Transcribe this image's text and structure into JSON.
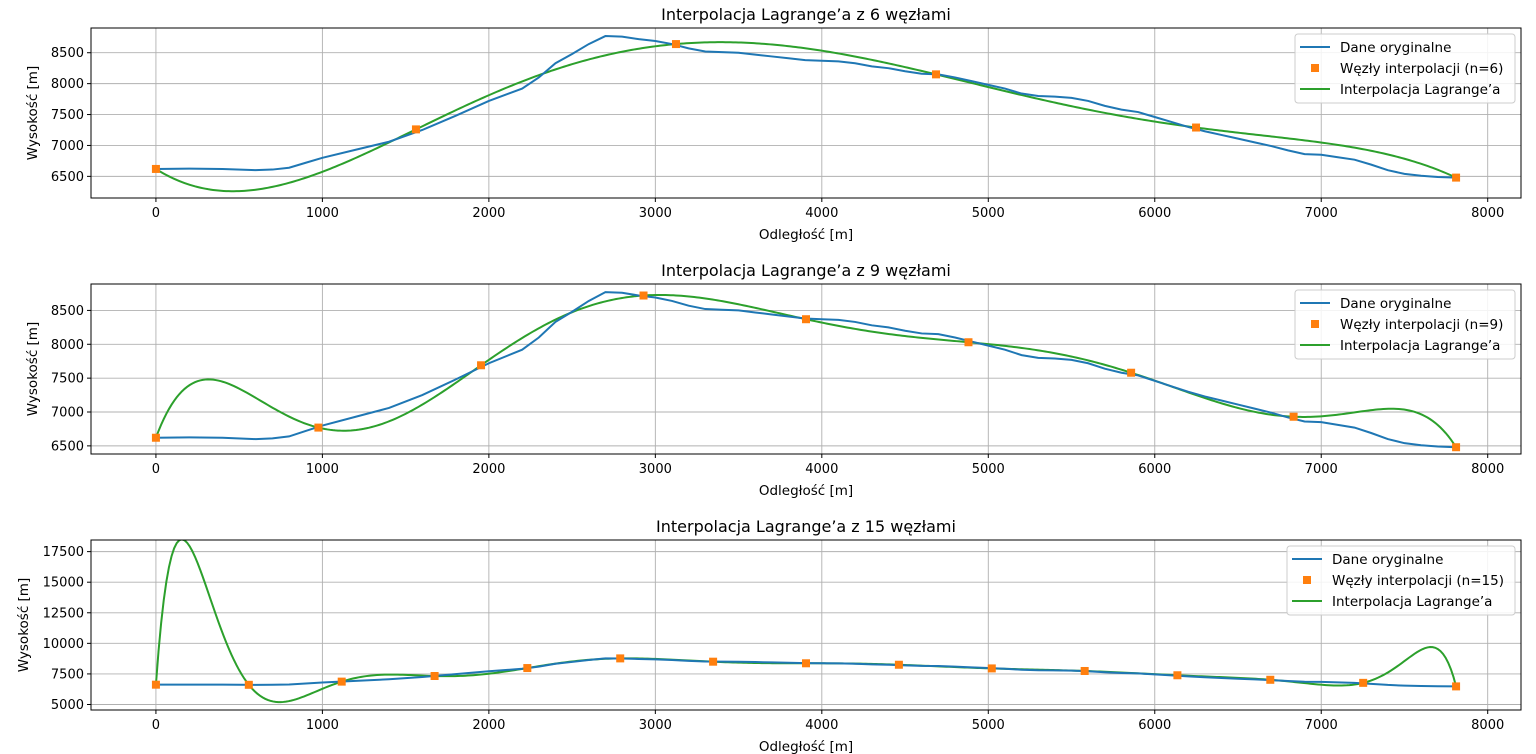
{
  "colors": {
    "original": "#1f77b4",
    "nodes": "#ff7f0e",
    "interpolation": "#2ca02c",
    "grid": "#b0b0b0"
  },
  "chart_data": [
    {
      "type": "line",
      "title": "Interpolacja Lagrange’a z 6 węzłami",
      "xlabel": "Odległość [m]",
      "ylabel": "Wysokość [m]",
      "xlim": [
        -390,
        8200
      ],
      "ylim": [
        6150,
        8900
      ],
      "xticks": [
        0,
        1000,
        2000,
        3000,
        4000,
        5000,
        6000,
        7000,
        8000
      ],
      "yticks": [
        6500,
        7000,
        7500,
        8000,
        8500
      ],
      "grid": true,
      "legend_position": "top-right",
      "series": [
        {
          "name": "Dane oryginalne",
          "kind": "line",
          "x": [
            0,
            200,
            400,
            600,
            700,
            800,
            900,
            1000,
            1200,
            1400,
            1600,
            1800,
            2000,
            2200,
            2300,
            2400,
            2500,
            2600,
            2700,
            2800,
            2900,
            3000,
            3100,
            3200,
            3300,
            3400,
            3500,
            3600,
            3700,
            3800,
            3900,
            4000,
            4100,
            4200,
            4300,
            4400,
            4500,
            4600,
            4700,
            4800,
            4900,
            5000,
            5100,
            5200,
            5300,
            5400,
            5500,
            5600,
            5700,
            5800,
            5900,
            6000,
            6100,
            6200,
            6300,
            6400,
            6500,
            6600,
            6700,
            6800,
            6900,
            7000,
            7100,
            7200,
            7300,
            7400,
            7500,
            7600,
            7700,
            7810
          ],
          "y": [
            6620,
            6625,
            6620,
            6600,
            6610,
            6640,
            6720,
            6800,
            6930,
            7060,
            7250,
            7480,
            7720,
            7920,
            8100,
            8330,
            8480,
            8640,
            8770,
            8760,
            8720,
            8690,
            8640,
            8570,
            8520,
            8510,
            8500,
            8470,
            8440,
            8410,
            8380,
            8370,
            8360,
            8330,
            8280,
            8250,
            8200,
            8160,
            8150,
            8100,
            8040,
            7980,
            7920,
            7840,
            7800,
            7790,
            7770,
            7720,
            7640,
            7580,
            7540,
            7460,
            7380,
            7300,
            7230,
            7170,
            7110,
            7050,
            6990,
            6920,
            6860,
            6850,
            6810,
            6770,
            6690,
            6600,
            6540,
            6510,
            6490,
            6480
          ]
        },
        {
          "name": "Węzły interpolacji (n=6)",
          "kind": "markers",
          "x": [
            0,
            1562,
            3124,
            4686,
            6248,
            7810
          ],
          "y": [
            6620,
            7260,
            8640,
            8150,
            7290,
            6480
          ]
        },
        {
          "name": "Interpolacja Lagrange’a",
          "kind": "lagrange",
          "nodes_ref": 1
        }
      ]
    },
    {
      "type": "line",
      "title": "Interpolacja Lagrange’a z 9 węzłami",
      "xlabel": "Odległość [m]",
      "ylabel": "Wysokość [m]",
      "xlim": [
        -390,
        8200
      ],
      "ylim": [
        6380,
        8890
      ],
      "xticks": [
        0,
        1000,
        2000,
        3000,
        4000,
        5000,
        6000,
        7000,
        8000
      ],
      "yticks": [
        6500,
        7000,
        7500,
        8000,
        8500
      ],
      "grid": true,
      "legend_position": "top-right",
      "series": [
        {
          "name": "Dane oryginalne",
          "kind": "line",
          "x": [
            0,
            200,
            400,
            600,
            700,
            800,
            900,
            1000,
            1200,
            1400,
            1600,
            1800,
            2000,
            2200,
            2300,
            2400,
            2500,
            2600,
            2700,
            2800,
            2900,
            3000,
            3100,
            3200,
            3300,
            3400,
            3500,
            3600,
            3700,
            3800,
            3900,
            4000,
            4100,
            4200,
            4300,
            4400,
            4500,
            4600,
            4700,
            4800,
            4900,
            5000,
            5100,
            5200,
            5300,
            5400,
            5500,
            5600,
            5700,
            5800,
            5900,
            6000,
            6100,
            6200,
            6300,
            6400,
            6500,
            6600,
            6700,
            6800,
            6900,
            7000,
            7100,
            7200,
            7300,
            7400,
            7500,
            7600,
            7700,
            7810
          ],
          "y": [
            6620,
            6625,
            6620,
            6600,
            6610,
            6640,
            6720,
            6800,
            6930,
            7060,
            7250,
            7480,
            7720,
            7920,
            8100,
            8330,
            8480,
            8640,
            8770,
            8760,
            8720,
            8690,
            8640,
            8570,
            8520,
            8510,
            8500,
            8470,
            8440,
            8410,
            8380,
            8370,
            8360,
            8330,
            8280,
            8250,
            8200,
            8160,
            8150,
            8100,
            8040,
            7980,
            7920,
            7840,
            7800,
            7790,
            7770,
            7720,
            7640,
            7580,
            7540,
            7460,
            7380,
            7300,
            7230,
            7170,
            7110,
            7050,
            6990,
            6920,
            6860,
            6850,
            6810,
            6770,
            6690,
            6600,
            6540,
            6510,
            6490,
            6480
          ]
        },
        {
          "name": "Węzły interpolacji (n=9)",
          "kind": "markers",
          "x": [
            0,
            976,
            1953,
            2929,
            3905,
            4881,
            5858,
            6834,
            7810
          ],
          "y": [
            6620,
            6770,
            7690,
            8720,
            8370,
            8030,
            7580,
            6930,
            6480
          ]
        },
        {
          "name": "Interpolacja Lagrange’a",
          "kind": "lagrange",
          "nodes_ref": 1
        }
      ]
    },
    {
      "type": "line",
      "title": "Interpolacja Lagrange’a z 15 węzłami",
      "xlabel": "Odległość [m]",
      "ylabel": "Wysokość [m]",
      "xlim": [
        -390,
        8200
      ],
      "ylim": [
        4550,
        18450
      ],
      "xticks": [
        0,
        1000,
        2000,
        3000,
        4000,
        5000,
        6000,
        7000,
        8000
      ],
      "yticks": [
        5000,
        7500,
        10000,
        12500,
        15000,
        17500
      ],
      "grid": true,
      "legend_position": "top-right",
      "series": [
        {
          "name": "Dane oryginalne",
          "kind": "line",
          "x": [
            0,
            200,
            400,
            600,
            700,
            800,
            900,
            1000,
            1200,
            1400,
            1600,
            1800,
            2000,
            2200,
            2300,
            2400,
            2500,
            2600,
            2700,
            2800,
            2900,
            3000,
            3100,
            3200,
            3300,
            3400,
            3500,
            3600,
            3700,
            3800,
            3900,
            4000,
            4100,
            4200,
            4300,
            4400,
            4500,
            4600,
            4700,
            4800,
            4900,
            5000,
            5100,
            5200,
            5300,
            5400,
            5500,
            5600,
            5700,
            5800,
            5900,
            6000,
            6100,
            6200,
            6300,
            6400,
            6500,
            6600,
            6700,
            6800,
            6900,
            7000,
            7100,
            7200,
            7300,
            7400,
            7500,
            7600,
            7700,
            7810
          ],
          "y": [
            6620,
            6625,
            6620,
            6600,
            6610,
            6640,
            6720,
            6800,
            6930,
            7060,
            7250,
            7480,
            7720,
            7920,
            8100,
            8330,
            8480,
            8640,
            8770,
            8760,
            8720,
            8690,
            8640,
            8570,
            8520,
            8510,
            8500,
            8470,
            8440,
            8410,
            8380,
            8370,
            8360,
            8330,
            8280,
            8250,
            8200,
            8160,
            8150,
            8100,
            8040,
            7980,
            7920,
            7840,
            7800,
            7790,
            7770,
            7720,
            7640,
            7580,
            7540,
            7460,
            7380,
            7300,
            7230,
            7170,
            7110,
            7050,
            6990,
            6920,
            6860,
            6850,
            6810,
            6770,
            6690,
            6600,
            6540,
            6510,
            6490,
            6480
          ]
        },
        {
          "name": "Węzły interpolacji (n=15)",
          "kind": "markers",
          "x": [
            0,
            558,
            1116,
            1674,
            2231,
            2789,
            3347,
            3905,
            4463,
            5021,
            5579,
            6136,
            6694,
            7252,
            7810
          ],
          "y": [
            6620,
            6610,
            6870,
            7330,
            7980,
            8770,
            8500,
            8370,
            8250,
            7950,
            7740,
            7390,
            7020,
            6770,
            6480
          ]
        },
        {
          "name": "Interpolacja Lagrange’a",
          "kind": "lagrange",
          "nodes_ref": 1
        }
      ]
    }
  ]
}
